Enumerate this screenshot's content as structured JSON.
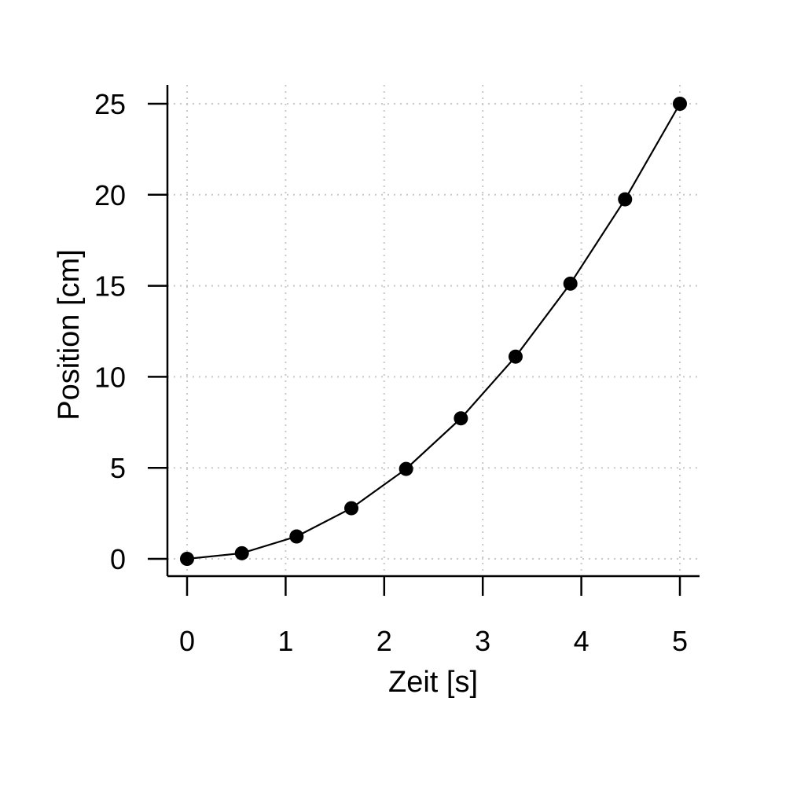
{
  "chart_data": {
    "type": "line",
    "title": "",
    "xlabel": "Zeit [s]",
    "ylabel": "Position [cm]",
    "xlim": [
      -0.1,
      5.2
    ],
    "ylim": [
      -1,
      26
    ],
    "x_ticks": [
      0,
      1,
      2,
      3,
      4,
      5
    ],
    "y_ticks": [
      0,
      5,
      10,
      15,
      20,
      25
    ],
    "x_tick_labels": [
      "0",
      "1",
      "2",
      "3",
      "4",
      "5"
    ],
    "y_tick_labels": [
      "0",
      "5",
      "10",
      "15",
      "20",
      "25"
    ],
    "grid": true,
    "series": [
      {
        "x": [
          0,
          0.556,
          1.111,
          1.667,
          2.222,
          2.778,
          3.333,
          3.889,
          4.444,
          5.0
        ],
        "y": [
          0,
          0.31,
          1.23,
          2.78,
          4.94,
          7.72,
          11.11,
          15.12,
          19.75,
          25.0
        ],
        "marker": "filled-circle",
        "color": "#000000"
      }
    ]
  }
}
